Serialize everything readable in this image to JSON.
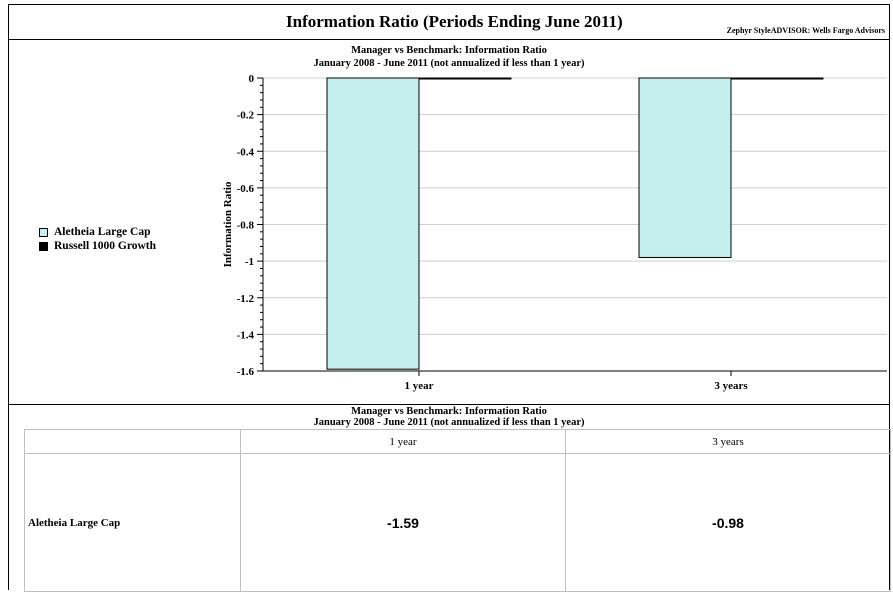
{
  "header": {
    "title": "Information Ratio (Periods Ending June 2011)",
    "source": "Zephyr StyleADVISOR: Wells Fargo Advisors"
  },
  "chart_section": {
    "title_line1": "Manager vs Benchmark: Information Ratio",
    "title_line2": "January 2008 - June 2011 (not annualized if less than 1 year)"
  },
  "legend": [
    {
      "label": "Aletheia Large Cap",
      "color": "#c5efec"
    },
    {
      "label": "Russell 1000 Growth",
      "color": "#000000"
    }
  ],
  "chart_data": {
    "type": "bar",
    "categories": [
      "1 year",
      "3 years"
    ],
    "series": [
      {
        "name": "Aletheia Large Cap",
        "values": [
          -1.59,
          -0.98
        ],
        "color": "#c5efec"
      },
      {
        "name": "Russell 1000 Growth",
        "values": [
          0,
          0
        ],
        "color": "#000000"
      }
    ],
    "ylabel": "Information Ratio",
    "xlabel": "",
    "ylim": [
      -1.6,
      0
    ],
    "yticks": [
      "0",
      "-0.2",
      "-0.4",
      "-0.6",
      "-0.8",
      "-1",
      "-1.2",
      "-1.4",
      "-1.6"
    ],
    "grid": true,
    "legend_position": "left"
  },
  "table": {
    "title_line1": "Manager vs Benchmark: Information Ratio",
    "title_line2": "January 2008 - June 2011 (not annualized if less than 1 year)",
    "columns": [
      "",
      "1 year",
      "3 years"
    ],
    "rows": [
      {
        "label": "Aletheia Large Cap",
        "values": [
          "-1.59",
          "-0.98"
        ]
      }
    ]
  }
}
